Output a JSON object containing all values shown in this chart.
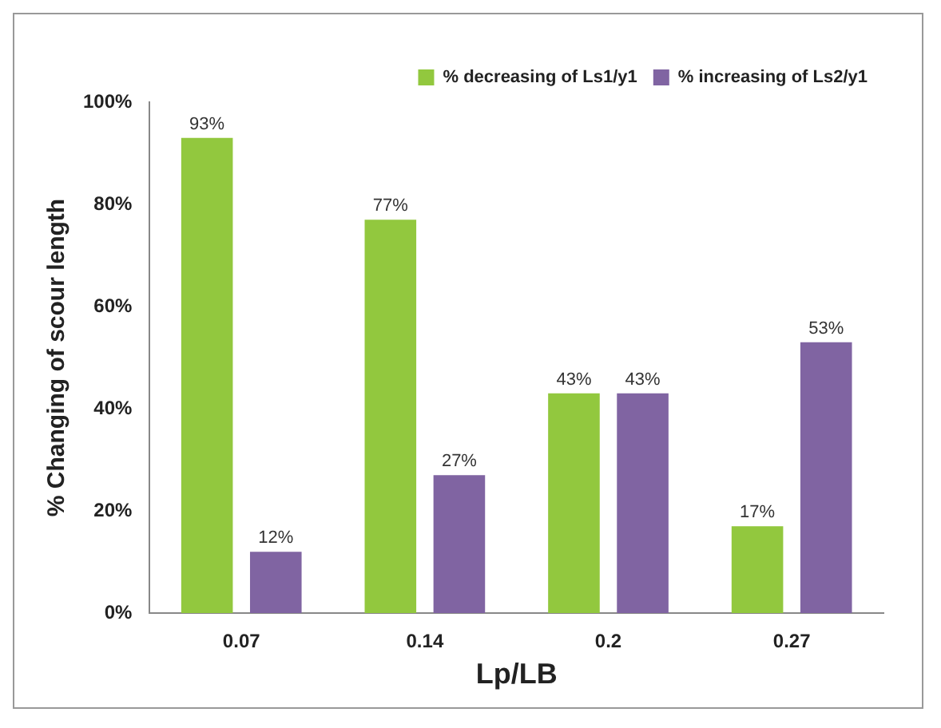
{
  "chart_data": {
    "type": "bar",
    "xlabel": "Lp/LB",
    "ylabel": "% Changing of scour length",
    "categories": [
      "0.07",
      "0.14",
      "0.2",
      "0.27"
    ],
    "series": [
      {
        "name": "% decreasing of Ls1/y1",
        "color": "#92c83e",
        "values": [
          93,
          77,
          43,
          17
        ],
        "value_labels": [
          "93%",
          "77%",
          "43%",
          "17%"
        ]
      },
      {
        "name": "% increasing of Ls2/y1",
        "color": "#8064a2",
        "values": [
          12,
          27,
          43,
          53
        ],
        "value_labels": [
          "12%",
          "27%",
          "43%",
          "53%"
        ]
      }
    ],
    "ylim": [
      0,
      100
    ],
    "yticks": [
      {
        "value": 0,
        "label": "0%"
      },
      {
        "value": 20,
        "label": "20%"
      },
      {
        "value": 40,
        "label": "40%"
      },
      {
        "value": 60,
        "label": "60%"
      },
      {
        "value": 80,
        "label": "80%"
      },
      {
        "value": 100,
        "label": "100%"
      }
    ],
    "legend": "top right",
    "grid": false
  }
}
